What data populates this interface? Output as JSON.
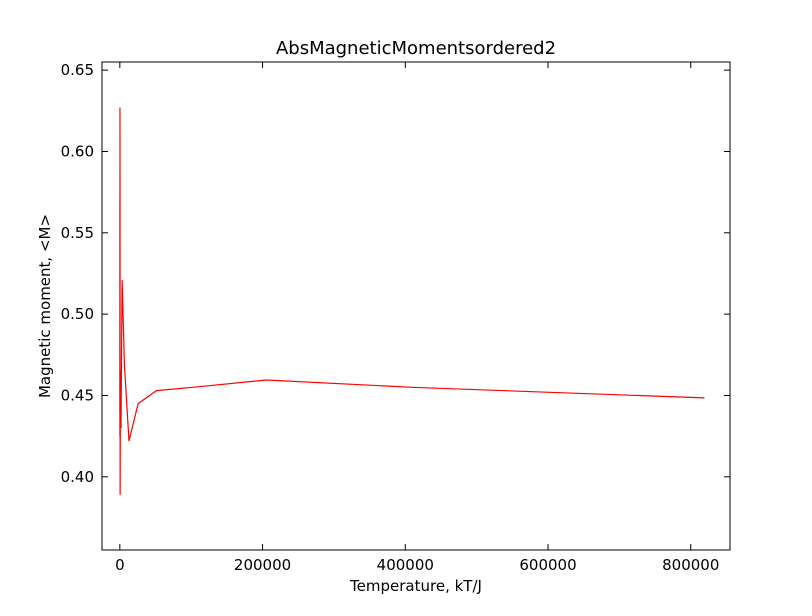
{
  "chart_data": {
    "type": "line",
    "title": "AbsMagneticMomentsordered2",
    "xlabel": "Temperature, kT/J",
    "ylabel": "Magnetic moment, <M>",
    "xlim": [
      -25000,
      855000
    ],
    "ylim": [
      0.355,
      0.655
    ],
    "xticks": [
      0,
      200000,
      400000,
      600000,
      800000
    ],
    "xtick_labels": [
      "0",
      "200000",
      "400000",
      "600000",
      "800000"
    ],
    "yticks": [
      0.4,
      0.45,
      0.5,
      0.55,
      0.6,
      0.65
    ],
    "ytick_labels": [
      "0.40",
      "0.45",
      "0.50",
      "0.55",
      "0.60",
      "0.65"
    ],
    "grid": false,
    "series": [
      {
        "color": "#ff0000",
        "x": [
          0,
          50,
          100,
          200,
          400,
          800,
          1600,
          3200,
          6400,
          12800,
          25600,
          51200,
          102400,
          204800,
          409600,
          819200
        ],
        "y": [
          0.44,
          0.571,
          0.425,
          0.627,
          0.389,
          0.465,
          0.43,
          0.521,
          0.469,
          0.422,
          0.445,
          0.453,
          0.455,
          0.4595,
          0.455,
          0.4485
        ]
      }
    ]
  }
}
